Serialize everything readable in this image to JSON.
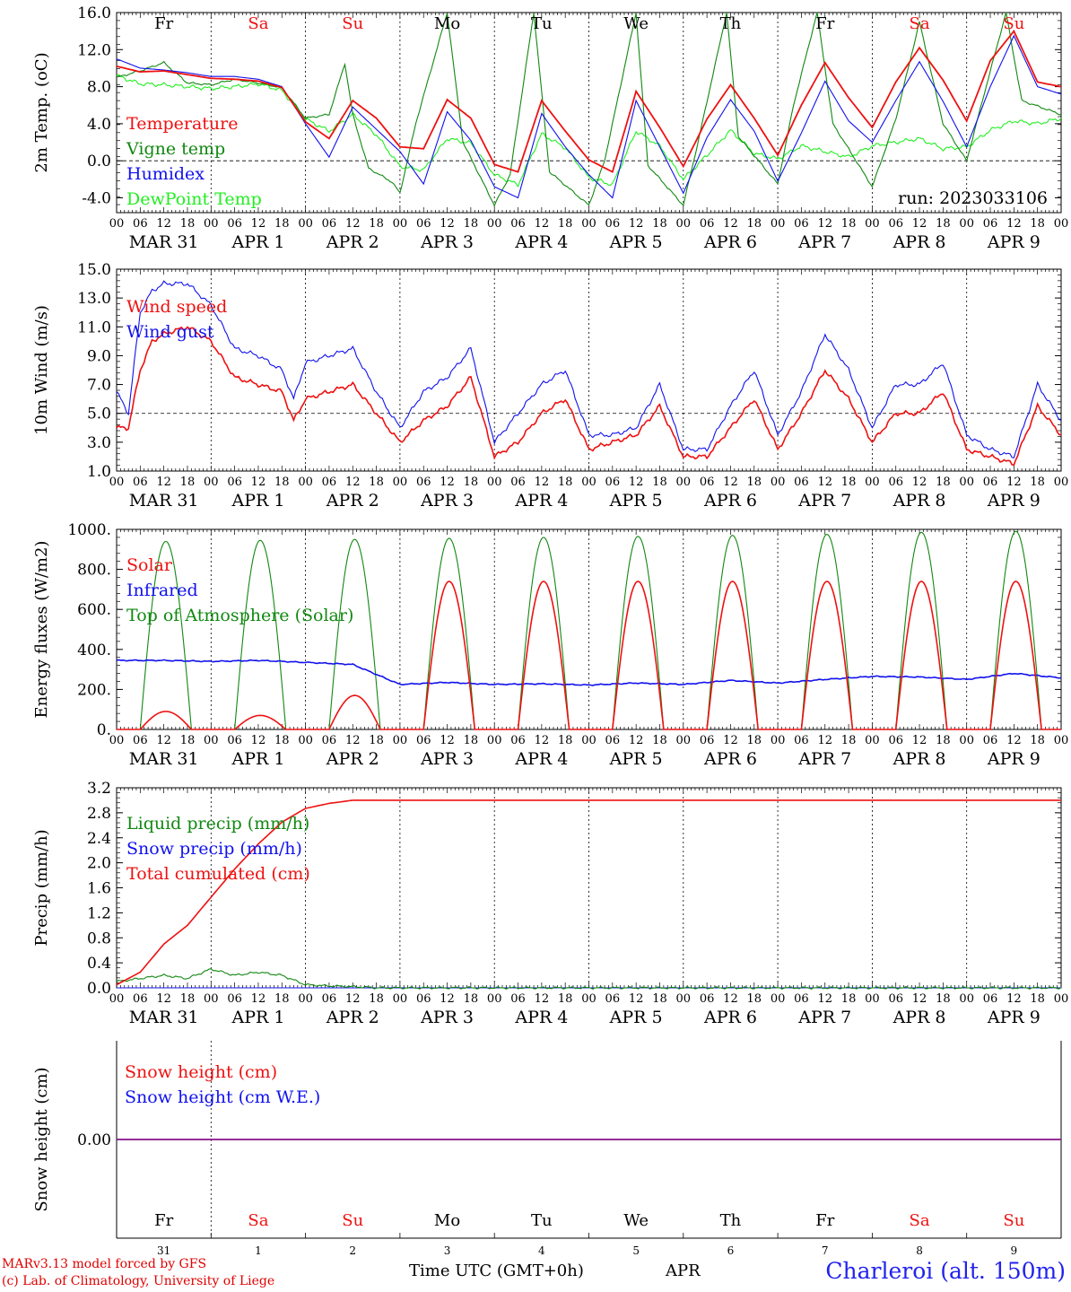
{
  "colors": {
    "red": "#ee1111",
    "green": "#118811",
    "blue": "#1111ee",
    "lightgreen": "#22ee22",
    "purple": "#881188",
    "grid": "#000000"
  },
  "days": [
    {
      "abbr": "Fr",
      "weekend": false,
      "month": "MAR",
      "date": "31"
    },
    {
      "abbr": "Sa",
      "weekend": true,
      "month": "APR",
      "date": "1"
    },
    {
      "abbr": "Su",
      "weekend": true,
      "month": "APR",
      "date": "2"
    },
    {
      "abbr": "Mo",
      "weekend": false,
      "month": "APR",
      "date": "3"
    },
    {
      "abbr": "Tu",
      "weekend": false,
      "month": "APR",
      "date": "4"
    },
    {
      "abbr": "We",
      "weekend": false,
      "month": "APR",
      "date": "5"
    },
    {
      "abbr": "Th",
      "weekend": false,
      "month": "APR",
      "date": "6"
    },
    {
      "abbr": "Fr",
      "weekend": false,
      "month": "APR",
      "date": "7"
    },
    {
      "abbr": "Sa",
      "weekend": true,
      "month": "APR",
      "date": "8"
    },
    {
      "abbr": "Su",
      "weekend": true,
      "month": "APR",
      "date": "9"
    }
  ],
  "hour_ticks": [
    "00",
    "06",
    "12",
    "18"
  ],
  "final_tick": "00",
  "chart_data": [
    {
      "type": "line",
      "ylabel": "2m Temp. (oC)",
      "ylim": [
        -5.6,
        16
      ],
      "yticks": [
        "-4.0",
        "0.0",
        "4.0",
        "8.0",
        "12.0",
        "16.0"
      ],
      "ytick_values": [
        -4,
        0,
        4,
        8,
        12,
        16
      ],
      "reference_line": 0,
      "run_label": "run: 2023033106",
      "series": [
        {
          "name": "Temperature",
          "color": "red",
          "x": [
            0,
            6,
            12,
            18,
            24,
            30,
            36,
            42,
            48,
            54,
            60,
            66,
            72,
            78,
            84,
            90,
            96,
            102,
            108,
            114,
            120,
            126,
            132,
            138,
            144,
            150,
            156,
            162,
            168,
            174,
            180,
            186,
            192,
            198,
            204,
            210,
            216,
            222,
            228,
            234,
            240
          ],
          "y": [
            10.2,
            9.6,
            9.7,
            9.3,
            8.9,
            8.8,
            8.6,
            7.9,
            4.2,
            2.4,
            6.5,
            4.6,
            1.5,
            1.3,
            6.6,
            4.6,
            -0.4,
            -1.2,
            6.5,
            3.2,
            0.1,
            -1.2,
            7.5,
            3.6,
            -0.6,
            4.5,
            8.2,
            4.6,
            0.6,
            6.0,
            10.6,
            6.8,
            3.6,
            8.5,
            12.2,
            8.7,
            4.3,
            10.8,
            14.0,
            8.5,
            8.0
          ]
        },
        {
          "name": "Vigne temp",
          "color": "green",
          "x": [
            0,
            6,
            12,
            18,
            24,
            30,
            36,
            42,
            48,
            54,
            58,
            60,
            64,
            70,
            72,
            76,
            84,
            88,
            96,
            100,
            106,
            110,
            120,
            124,
            132,
            135,
            144,
            148,
            155,
            158,
            168,
            172,
            178,
            182,
            192,
            198,
            204,
            210,
            216,
            220,
            226,
            230,
            240
          ],
          "y": [
            9.0,
            9.7,
            10.6,
            8.4,
            8.2,
            8.8,
            8.4,
            7.9,
            4.6,
            5.0,
            10.5,
            5.0,
            -0.8,
            -2.3,
            -3.5,
            4.0,
            16.0,
            2.0,
            -4.8,
            -1.5,
            16.0,
            -1.2,
            -4.8,
            0.0,
            16.0,
            -0.5,
            -4.8,
            2.5,
            16.0,
            2.6,
            -2.5,
            6.0,
            16.0,
            4.0,
            -2.8,
            4.5,
            15.0,
            4.0,
            0.0,
            6.5,
            16.0,
            6.5,
            5.0
          ]
        },
        {
          "name": "Humidex",
          "color": "blue",
          "x": [
            0,
            6,
            12,
            18,
            24,
            30,
            36,
            42,
            48,
            54,
            60,
            66,
            72,
            78,
            84,
            90,
            96,
            102,
            108,
            114,
            120,
            126,
            132,
            138,
            144,
            150,
            156,
            162,
            168,
            174,
            180,
            186,
            192,
            198,
            204,
            210,
            216,
            222,
            228,
            234,
            240
          ],
          "y": [
            11.0,
            10.0,
            9.8,
            9.5,
            9.1,
            9.1,
            8.8,
            8.0,
            4.0,
            0.4,
            5.8,
            3.4,
            1.0,
            -2.5,
            5.3,
            2.2,
            -2.8,
            -4.0,
            5.1,
            1.5,
            -1.5,
            -4.0,
            6.5,
            1.5,
            -3.5,
            2.5,
            6.6,
            3.2,
            -2.2,
            3.0,
            8.6,
            4.3,
            2.0,
            6.5,
            10.7,
            6.4,
            1.5,
            8.0,
            13.5,
            8.0,
            7.2
          ]
        },
        {
          "name": "DewPoint Temp",
          "color": "lightgreen",
          "x": [
            0,
            6,
            12,
            18,
            24,
            30,
            36,
            42,
            48,
            54,
            60,
            66,
            72,
            78,
            84,
            90,
            96,
            102,
            108,
            114,
            120,
            126,
            132,
            138,
            144,
            150,
            156,
            162,
            168,
            174,
            180,
            186,
            192,
            198,
            204,
            210,
            216,
            222,
            228,
            234,
            240
          ],
          "y": [
            9.2,
            8.3,
            8.2,
            8.0,
            7.8,
            8.0,
            8.3,
            7.6,
            4.5,
            3.2,
            5.0,
            2.8,
            -0.6,
            -1.0,
            2.4,
            1.9,
            -1.5,
            -2.6,
            2.9,
            1.4,
            -1.8,
            -2.6,
            3.2,
            1.6,
            -2.0,
            0.6,
            3.3,
            0.8,
            0.2,
            1.6,
            1.0,
            0.4,
            1.6,
            2.0,
            2.4,
            1.3,
            1.5,
            3.3,
            4.3,
            4.0,
            4.6
          ]
        }
      ]
    },
    {
      "type": "line",
      "ylabel": "10m Wind (m/s)",
      "ylim": [
        1,
        15
      ],
      "yticks": [
        "1.0",
        "3.0",
        "5.0",
        "7.0",
        "9.0",
        "11.0",
        "13.0",
        "15.0"
      ],
      "ytick_values": [
        1,
        3,
        5,
        7,
        9,
        11,
        13,
        15
      ],
      "reference_line": 5,
      "series": [
        {
          "name": "Wind speed",
          "color": "red",
          "x": [
            0,
            3,
            6,
            9,
            12,
            18,
            24,
            30,
            36,
            42,
            45,
            48,
            54,
            60,
            66,
            72,
            78,
            84,
            90,
            96,
            102,
            108,
            114,
            120,
            126,
            132,
            138,
            144,
            150,
            156,
            162,
            168,
            174,
            180,
            186,
            192,
            198,
            204,
            210,
            216,
            222,
            228,
            234,
            240
          ],
          "y": [
            4.0,
            4.0,
            8.0,
            10.0,
            10.5,
            11.0,
            10.0,
            7.5,
            7.0,
            6.5,
            4.5,
            6.0,
            6.5,
            7.0,
            5.0,
            3.0,
            4.5,
            5.5,
            7.5,
            2.0,
            3.0,
            5.0,
            6.0,
            2.5,
            3.0,
            3.5,
            5.5,
            2.0,
            2.0,
            4.0,
            6.0,
            2.5,
            5.0,
            8.0,
            6.0,
            3.0,
            5.0,
            5.0,
            6.5,
            2.5,
            2.0,
            1.5,
            5.5,
            3.5
          ]
        },
        {
          "name": "Wind gust",
          "color": "blue",
          "x": [
            0,
            3,
            6,
            9,
            12,
            18,
            24,
            30,
            36,
            42,
            45,
            48,
            54,
            60,
            66,
            72,
            78,
            84,
            90,
            96,
            102,
            108,
            114,
            120,
            126,
            132,
            138,
            144,
            150,
            156,
            162,
            168,
            174,
            180,
            186,
            192,
            198,
            204,
            210,
            216,
            222,
            228,
            234,
            240
          ],
          "y": [
            6.5,
            5.0,
            12.0,
            13.5,
            14.0,
            14.0,
            12.5,
            9.5,
            9.0,
            8.0,
            6.0,
            8.5,
            9.0,
            9.5,
            6.5,
            4.0,
            6.5,
            7.5,
            9.5,
            3.0,
            5.0,
            7.0,
            8.0,
            3.5,
            3.5,
            4.0,
            7.0,
            2.5,
            2.5,
            5.5,
            8.0,
            3.5,
            6.5,
            10.5,
            8.0,
            4.0,
            7.0,
            7.0,
            8.5,
            3.5,
            2.5,
            2.0,
            7.0,
            4.5
          ]
        }
      ]
    },
    {
      "type": "area",
      "ylabel": "Energy fluxes (W/m2)",
      "ylim": [
        0,
        1000
      ],
      "yticks": [
        "0.",
        "200.",
        "400.",
        "600.",
        "800.",
        "1000."
      ],
      "ytick_values": [
        0,
        200,
        400,
        600,
        800,
        1000
      ],
      "series": [
        {
          "name": "Solar",
          "color": "red",
          "daily_peak": [
            90,
            70,
            170,
            740,
            740,
            740,
            740,
            740,
            740,
            740
          ],
          "sunrise_hour": 6,
          "sunset_hour": 19
        },
        {
          "name": "Infrared",
          "color": "blue",
          "x": [
            0,
            12,
            24,
            36,
            48,
            60,
            72,
            84,
            96,
            108,
            120,
            132,
            144,
            156,
            168,
            180,
            192,
            204,
            216,
            228,
            240
          ],
          "y": [
            345,
            345,
            340,
            345,
            335,
            325,
            225,
            235,
            225,
            228,
            222,
            232,
            225,
            245,
            232,
            250,
            265,
            262,
            250,
            280,
            258
          ]
        },
        {
          "name": "Top of Atmosphere (Solar)",
          "color": "green",
          "daily_peak": [
            940,
            945,
            950,
            955,
            960,
            965,
            970,
            975,
            985,
            990
          ],
          "sunrise_hour": 6,
          "sunset_hour": 19
        }
      ]
    },
    {
      "type": "line",
      "ylabel": "Precip (mm/h)",
      "ylim": [
        0,
        3.2
      ],
      "yticks": [
        "0.0",
        "0.4",
        "0.8",
        "1.2",
        "1.6",
        "2.0",
        "2.4",
        "2.8",
        "3.2"
      ],
      "ytick_values": [
        0,
        0.4,
        0.8,
        1.2,
        1.6,
        2.0,
        2.4,
        2.8,
        3.2
      ],
      "series": [
        {
          "name": "Liquid precip (mm/h)",
          "color": "green",
          "x": [
            0,
            6,
            12,
            18,
            24,
            30,
            36,
            42,
            48,
            54,
            60,
            66,
            72,
            240
          ],
          "y": [
            0.1,
            0.15,
            0.2,
            0.15,
            0.3,
            0.2,
            0.25,
            0.2,
            0.05,
            0.03,
            0.02,
            0.0,
            0.0,
            0.0
          ]
        },
        {
          "name": "Snow precip (mm/h)",
          "color": "blue",
          "x": [
            0,
            240
          ],
          "y": [
            0.0,
            0.0
          ]
        },
        {
          "name": "Total cumulated (cm)",
          "color": "red",
          "x": [
            0,
            6,
            12,
            18,
            24,
            30,
            36,
            42,
            48,
            54,
            60,
            66,
            72,
            240
          ],
          "y": [
            0.05,
            0.25,
            0.7,
            1.0,
            1.45,
            1.9,
            2.3,
            2.65,
            2.87,
            2.95,
            3.0,
            3.0,
            3.0,
            3.0
          ]
        }
      ]
    },
    {
      "type": "line",
      "ylabel": "Snow height (cm)",
      "yticks": [
        "0.00"
      ],
      "series": [
        {
          "name": "Snow height (cm)",
          "color": "red",
          "x": [
            0,
            240
          ],
          "y": [
            0,
            0
          ]
        },
        {
          "name": "Snow height (cm W.E.)",
          "color": "blue",
          "x": [
            0,
            240
          ],
          "y": [
            0,
            0
          ]
        }
      ]
    }
  ],
  "footer": {
    "credit_line1": "MARv3.13 model forced by GFS",
    "credit_line2": "(c) Lab. of Climatology, University of Liege",
    "xlabel": "Time UTC (GMT+0h)",
    "month": "APR",
    "station": "Charleroi (alt. 150m)"
  }
}
